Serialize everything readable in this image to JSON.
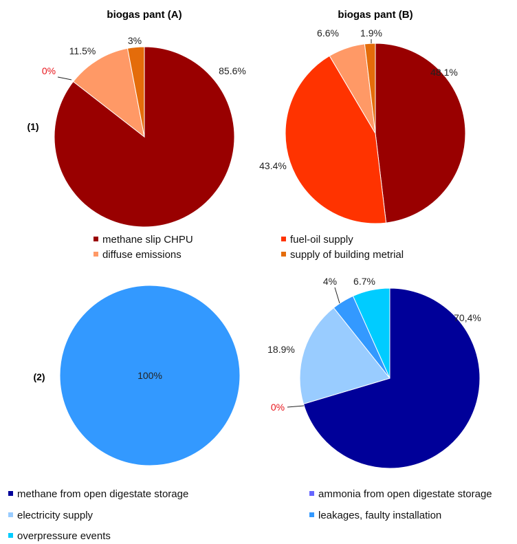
{
  "colors": {
    "methane_slip": "#990000",
    "diffuse": "#FF9966",
    "fuel_oil": "#FF3300",
    "building": "#E46C0A",
    "open_digestate": "#000099",
    "ammonia": "#6666FF",
    "electricity": "#99CCFF",
    "leakages": "#3399FF",
    "overpressure": "#00CCFF"
  },
  "row_labels": {
    "row1": "(1)",
    "row2": "(2)"
  },
  "legend1": {
    "methane_slip": "methane slip CHPU",
    "diffuse": "diffuse emissions",
    "fuel_oil": "fuel-oil supply",
    "building": "supply of building metrial"
  },
  "legend2": {
    "open_digestate": "methane from open digestate storage",
    "ammonia": "ammonia from open digestate storage",
    "electricity": "electricity supply",
    "leakages": "leakages, faulty installation",
    "overpressure": "overpressure events"
  },
  "chart_data": [
    {
      "type": "pie",
      "title": "biogas pant (A)",
      "row": "(1)",
      "slices": [
        {
          "name": "methane slip CHPU",
          "value": 85.6,
          "label": "85.6%",
          "color": "#990000"
        },
        {
          "name": "diffuse emissions",
          "value": 0,
          "label": "0%",
          "color": "#FF9966"
        },
        {
          "name": "diffuse emissions",
          "value": 11.5,
          "label": "11.5%",
          "color": "#FF9966"
        },
        {
          "name": "supply of building metrial",
          "value": 3,
          "label": "3%",
          "color": "#E46C0A"
        }
      ]
    },
    {
      "type": "pie",
      "title": "biogas pant (B)",
      "row": "(1)",
      "slices": [
        {
          "name": "methane slip CHPU",
          "value": 48.1,
          "label": "48.1%",
          "color": "#990000"
        },
        {
          "name": "fuel-oil supply",
          "value": 43.4,
          "label": "43.4%",
          "color": "#FF3300"
        },
        {
          "name": "diffuse emissions",
          "value": 6.6,
          "label": "6.6%",
          "color": "#FF9966"
        },
        {
          "name": "supply of building metrial",
          "value": 1.9,
          "label": "1.9%",
          "color": "#E46C0A"
        }
      ]
    },
    {
      "type": "pie",
      "title": "",
      "row": "(2)",
      "slices": [
        {
          "name": "leakages, faulty installation",
          "value": 100,
          "label": "100%",
          "color": "#3399FF"
        }
      ]
    },
    {
      "type": "pie",
      "title": "",
      "row": "(2)",
      "slices": [
        {
          "name": "methane from open digestate storage",
          "value": 70.4,
          "label": "70,4%",
          "color": "#000099"
        },
        {
          "name": "ammonia from open digestate storage",
          "value": 0,
          "label": "0%",
          "color": "#6666FF"
        },
        {
          "name": "electricity supply",
          "value": 18.9,
          "label": "18.9%",
          "color": "#99CCFF"
        },
        {
          "name": "leakages, faulty installation",
          "value": 4,
          "label": "4%",
          "color": "#3399FF"
        },
        {
          "name": "overpressure events",
          "value": 6.7,
          "label": "6.7%",
          "color": "#00CCFF"
        }
      ]
    }
  ]
}
